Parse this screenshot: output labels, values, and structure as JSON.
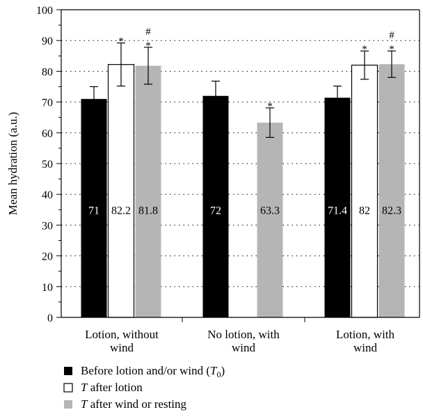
{
  "chart_data": {
    "type": "bar",
    "ylabel": "Mean hydration (a.u.)",
    "ylim": [
      0,
      100
    ],
    "yticks": [
      0,
      10,
      20,
      30,
      40,
      50,
      60,
      70,
      80,
      90,
      100
    ],
    "grid": "horizontal dotted",
    "groups": [
      {
        "label_lines": [
          "Lotion, without",
          "wind"
        ],
        "bars": [
          {
            "series": 0,
            "value": 71,
            "label": "71",
            "err": 4,
            "markers": []
          },
          {
            "series": 1,
            "value": 82.2,
            "label": "82.2",
            "err": 7,
            "markers": [
              "*"
            ]
          },
          {
            "series": 2,
            "value": 81.8,
            "label": "81.8",
            "err": 6,
            "markers": [
              "#",
              "*"
            ]
          }
        ]
      },
      {
        "label_lines": [
          "No lotion, with",
          "wind"
        ],
        "bars": [
          {
            "series": 0,
            "value": 72,
            "label": "72",
            "err": 4.8,
            "markers": []
          },
          {
            "series": 2,
            "value": 63.3,
            "label": "63.3",
            "err": 4.8,
            "markers": [
              "*"
            ]
          }
        ]
      },
      {
        "label_lines": [
          "Lotion, with",
          "wind"
        ],
        "bars": [
          {
            "series": 0,
            "value": 71.4,
            "label": "71.4",
            "err": 3.8,
            "markers": []
          },
          {
            "series": 1,
            "value": 82,
            "label": "82",
            "err": 4.6,
            "markers": [
              "*"
            ]
          },
          {
            "series": 2,
            "value": 82.3,
            "label": "82.3",
            "err": 4.3,
            "markers": [
              "#",
              "*"
            ]
          }
        ]
      }
    ],
    "series": [
      {
        "text": "Before lotion and/or wind (",
        "math": "T",
        "sub": "0",
        "tail": ")",
        "color": "#000000",
        "label_color": "#ffffff",
        "outline": "#000000"
      },
      {
        "text": "",
        "math": "T",
        "sub": "",
        "tail": " after lotion",
        "color": "#ffffff",
        "label_color": "#000000",
        "outline": "#000000"
      },
      {
        "text": "",
        "math": "T",
        "sub": "",
        "tail": " after wind or resting",
        "color": "#b5b5b5",
        "label_color": "#000000",
        "outline": "#b5b5b5"
      }
    ],
    "legend_position": "bottom-left"
  }
}
